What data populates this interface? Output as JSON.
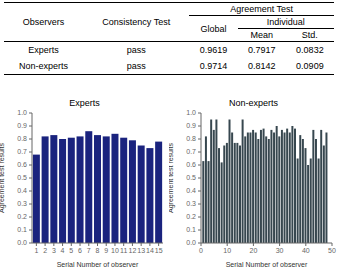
{
  "chart_data": [
    {
      "type": "table",
      "columns": [
        "Observers",
        "Consistency Test",
        "Global",
        "Mean",
        "Std."
      ],
      "header_groups": [
        {
          "label": "Agreement Test",
          "columns": [
            "Global",
            "Mean",
            "Std."
          ]
        },
        {
          "label": "Individual",
          "columns": [
            "Mean",
            "Std."
          ]
        }
      ],
      "rows": [
        [
          "Experts",
          "pass",
          0.9619,
          0.7917,
          0.0832
        ],
        [
          "Non-experts",
          "pass",
          0.9714,
          0.8142,
          0.0909
        ]
      ]
    },
    {
      "type": "bar",
      "title": "Experts",
      "x_label": "Serial Number of observer",
      "y_label": "Agreement test results",
      "categories": [
        "1",
        "2",
        "3",
        "4",
        "5",
        "6",
        "7",
        "8",
        "9",
        "10",
        "11",
        "12",
        "13",
        "14",
        "15"
      ],
      "values": [
        0.68,
        0.82,
        0.83,
        0.8,
        0.81,
        0.82,
        0.86,
        0.83,
        0.82,
        0.84,
        0.81,
        0.79,
        0.75,
        0.73,
        0.78
      ],
      "color": "#1a237e",
      "ylim": [
        0.0,
        1.0
      ],
      "yticks": [
        {
          "value": 0.0,
          "label": "0.0"
        },
        0.1,
        0.2,
        0.3,
        0.4,
        0.5,
        0.6,
        0.7,
        0.8,
        0.9,
        {
          "value": 1.0,
          "label": "1.0"
        }
      ]
    },
    {
      "type": "bar",
      "title": "Non-experts",
      "x_label": "Serial Number of observer",
      "y_label": "Agreement test results",
      "x": [
        1,
        2,
        3,
        4,
        5,
        6,
        7,
        8,
        9,
        10,
        11,
        12,
        13,
        14,
        15,
        16,
        17,
        18,
        19,
        20,
        21,
        22,
        23,
        24,
        25,
        26,
        27,
        28,
        29,
        30,
        31,
        32,
        33,
        34,
        35,
        36,
        37,
        38,
        39,
        40,
        41,
        42,
        43,
        44,
        45,
        46,
        47,
        48
      ],
      "values": [
        0.63,
        0.82,
        0.63,
        0.95,
        0.87,
        0.95,
        0.73,
        0.62,
        0.75,
        0.77,
        0.95,
        0.85,
        0.77,
        0.77,
        0.75,
        0.95,
        0.82,
        0.85,
        0.85,
        0.87,
        0.85,
        0.8,
        0.87,
        0.88,
        0.82,
        0.8,
        0.87,
        0.85,
        0.9,
        0.82,
        0.87,
        0.85,
        0.88,
        0.85,
        0.9,
        0.88,
        0.65,
        0.83,
        0.8,
        0.73,
        0.6,
        0.65,
        0.87,
        0.8,
        0.65,
        0.87,
        0.75,
        0.85
      ],
      "color": "#37474f",
      "xlim": [
        0,
        50
      ],
      "xticks": [
        0,
        10,
        20,
        30,
        40,
        50
      ],
      "ylim": [
        0.0,
        1.0
      ],
      "yticks": [
        {
          "value": 0.0,
          "label": "0.0"
        },
        0.1,
        0.2,
        0.3,
        0.4,
        0.5,
        0.6,
        0.7,
        0.8,
        0.9,
        {
          "value": 1.0,
          "label": "1.0"
        }
      ]
    }
  ]
}
